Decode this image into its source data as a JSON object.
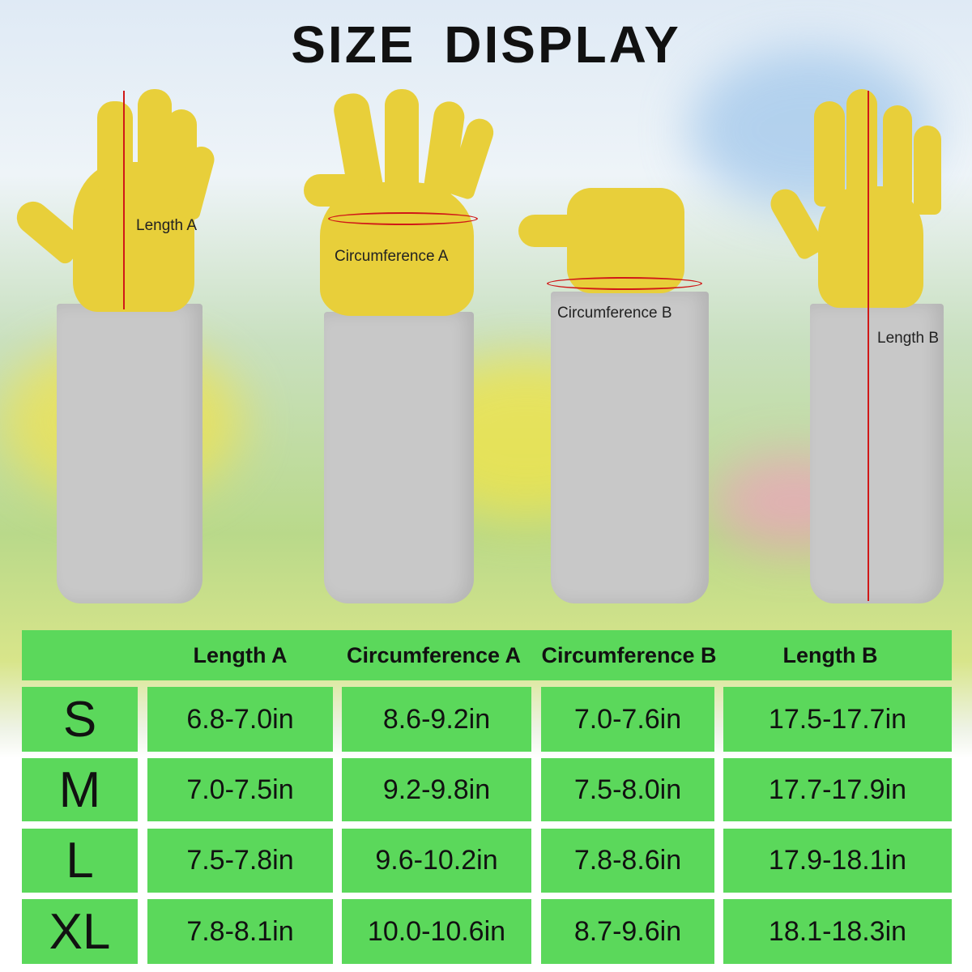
{
  "title": "SIZE DISPLAY",
  "labels": {
    "length_a": "Length A",
    "circumference_a": "Circumference A",
    "circumference_b": "Circumference B",
    "length_b": "Length B"
  },
  "table": {
    "headers": [
      "Length A",
      "Circumference A",
      "Circumference B",
      "Length B"
    ],
    "rows": [
      {
        "size": "S",
        "values": [
          "6.8-7.0in",
          "8.6-9.2in",
          "7.0-7.6in",
          "17.5-17.7in"
        ]
      },
      {
        "size": "M",
        "values": [
          "7.0-7.5in",
          "9.2-9.8in",
          "7.5-8.0in",
          "17.7-17.9in"
        ]
      },
      {
        "size": "L",
        "values": [
          "7.5-7.8in",
          "9.6-10.2in",
          "7.8-8.6in",
          "17.9-18.1in"
        ]
      },
      {
        "size": "XL",
        "values": [
          "7.8-8.1in",
          "10.0-10.6in",
          "8.7-9.6in",
          "18.1-18.3in"
        ]
      }
    ]
  },
  "colors": {
    "table_green": "#5bd85b",
    "glove_yellow": "#e8cf3a",
    "cuff_grey": "#c8c8c8",
    "arrow_red": "#d01818"
  }
}
